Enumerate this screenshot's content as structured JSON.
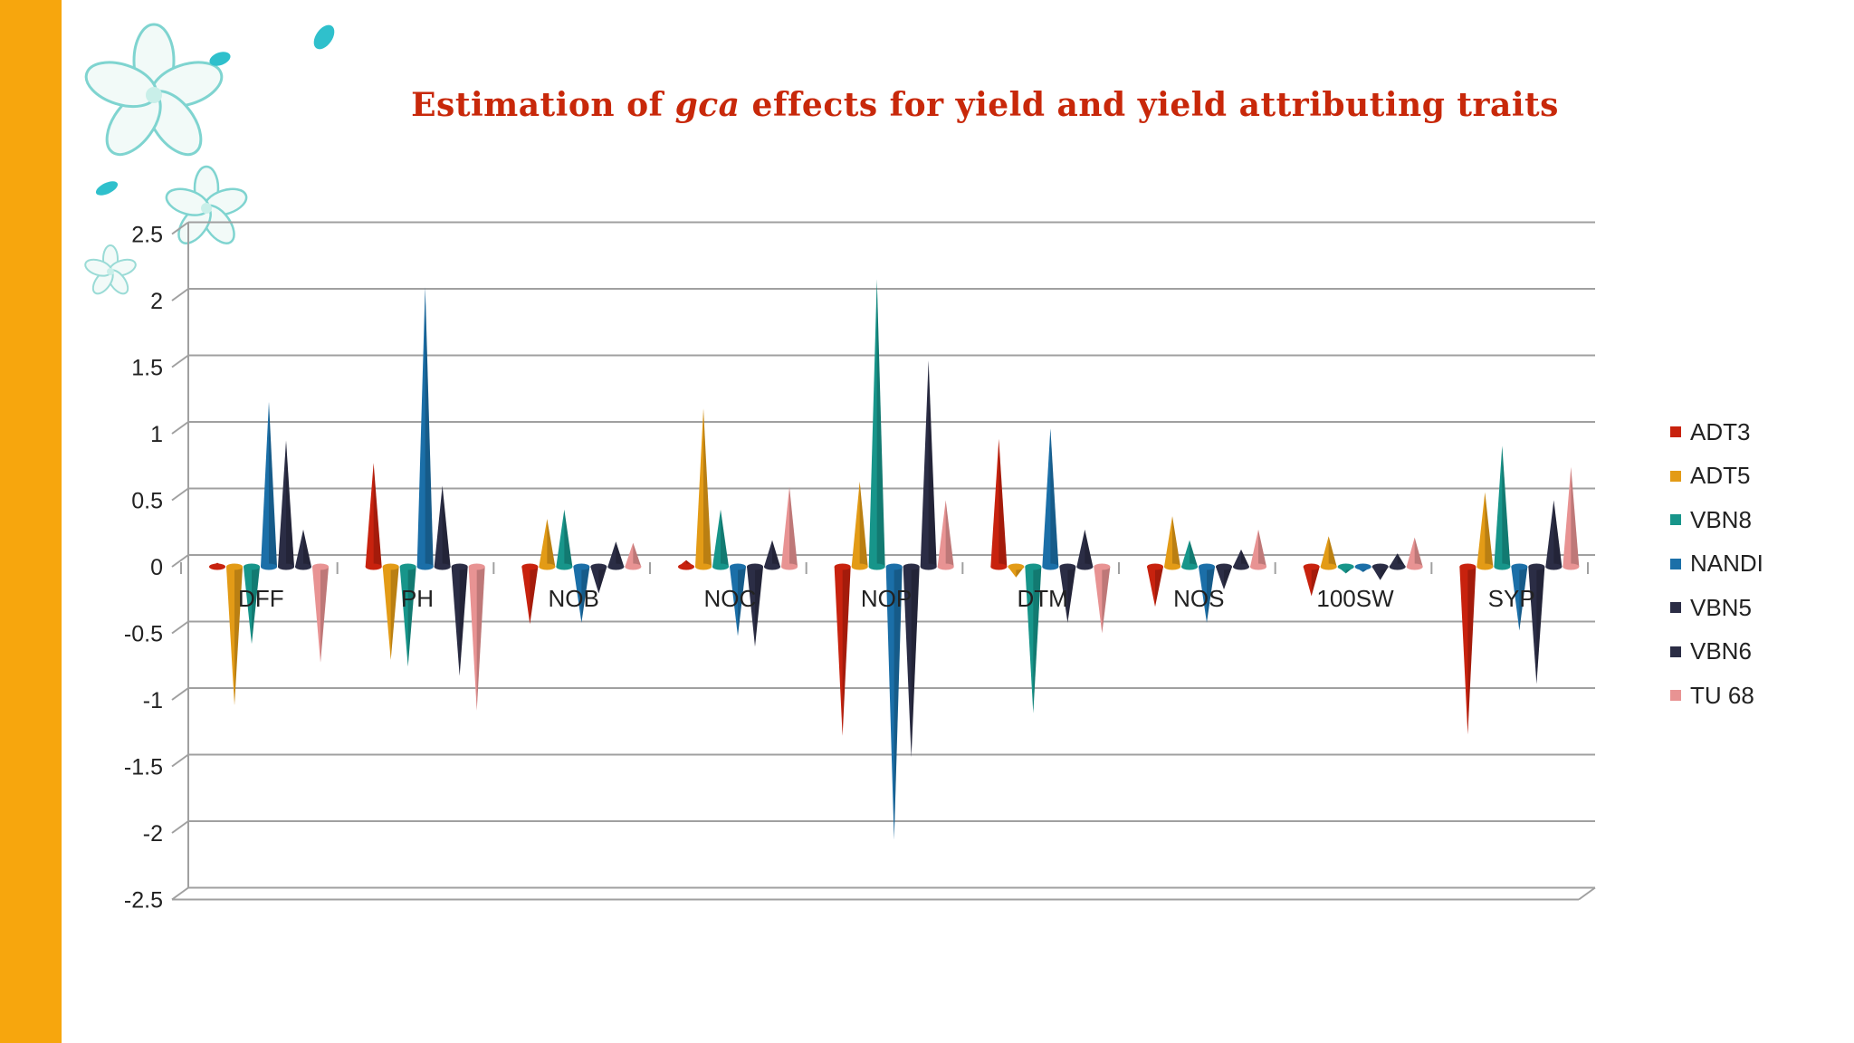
{
  "title": {
    "prefix": "Estimation of ",
    "italic": "gca",
    "suffix": " effects for yield and yield attributing traits"
  },
  "colors": {
    "accent_bar": "#f7a60d",
    "title": "#c8280a"
  },
  "chart_data": {
    "type": "bar",
    "title": "Estimation of gca effects for yield and yield attributing traits",
    "xlabel": "",
    "ylabel": "",
    "ylim": [
      -2.5,
      2.5
    ],
    "yticks": [
      "2.5",
      "2",
      "1.5",
      "1",
      "0.5",
      "0",
      "-0.5",
      "-1",
      "-1.5",
      "-2",
      "-2.5"
    ],
    "grid": true,
    "legend_position": "right",
    "categories": [
      "DFF",
      "PH",
      "NOB",
      "NOC",
      "NOP",
      "DTM",
      "NOS",
      "100SW",
      "SYP"
    ],
    "series": [
      {
        "name": "ADT3",
        "color": "#c8220e",
        "values": [
          0.03,
          0.78,
          -0.43,
          0.05,
          -1.27,
          0.96,
          -0.3,
          -0.22,
          -1.26
        ]
      },
      {
        "name": "ADT5",
        "color": "#e39b16",
        "values": [
          -1.04,
          -0.7,
          0.36,
          1.19,
          0.64,
          -0.08,
          0.38,
          0.23,
          0.56
        ]
      },
      {
        "name": "VBN8",
        "color": "#17958a",
        "values": [
          -0.58,
          -0.75,
          0.43,
          0.43,
          2.16,
          -1.1,
          0.2,
          -0.05,
          0.91
        ]
      },
      {
        "name": "NANDI",
        "color": "#1b6fa8",
        "values": [
          1.24,
          2.1,
          -0.42,
          -0.52,
          -2.05,
          1.04,
          -0.42,
          -0.04,
          -0.48
        ]
      },
      {
        "name": "VBN5",
        "color": "#2b2d45",
        "values": [
          0.95,
          0.61,
          -0.2,
          -0.6,
          -1.43,
          -0.42,
          -0.17,
          -0.1,
          -0.88
        ]
      },
      {
        "name": "VBN6",
        "color": "#2b2d45",
        "values": [
          0.28,
          -0.82,
          0.19,
          0.2,
          1.55,
          0.28,
          0.13,
          0.1,
          0.5
        ]
      },
      {
        "name": "TU 68",
        "color": "#e89393",
        "values": [
          -0.72,
          -1.08,
          0.18,
          0.6,
          0.5,
          -0.5,
          0.28,
          0.22,
          0.75
        ]
      }
    ]
  }
}
